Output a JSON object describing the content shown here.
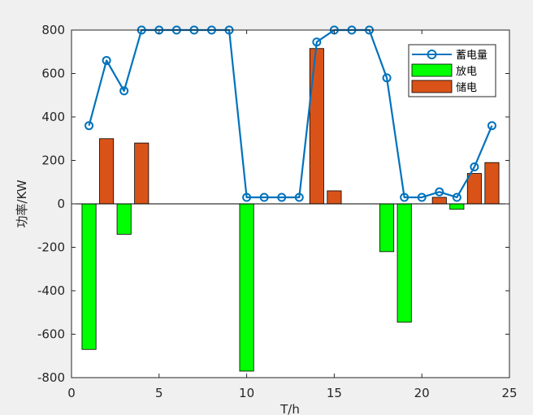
{
  "chart_data": {
    "type": "bar",
    "xlabel": "T/h",
    "ylabel": "功率/KW",
    "xlim": [
      0,
      25
    ],
    "ylim": [
      -800,
      800
    ],
    "xticks": [
      0,
      5,
      10,
      15,
      20,
      25
    ],
    "yticks": [
      -800,
      -600,
      -400,
      -200,
      0,
      200,
      400,
      600,
      800
    ],
    "grid": false,
    "legend_position": "top-right",
    "categories": [
      1,
      2,
      3,
      4,
      5,
      6,
      7,
      8,
      9,
      10,
      11,
      12,
      13,
      14,
      15,
      16,
      17,
      18,
      19,
      20,
      21,
      22,
      23,
      24
    ],
    "series": [
      {
        "name": "蓄电量",
        "kind": "line",
        "marker": "circle",
        "color": "#0072BD",
        "values": [
          360,
          660,
          520,
          800,
          800,
          800,
          800,
          800,
          800,
          30,
          30,
          30,
          30,
          745,
          800,
          800,
          800,
          580,
          30,
          30,
          55,
          30,
          170,
          360
        ]
      },
      {
        "name": "放电",
        "kind": "bar",
        "color": "#00FF00",
        "values": [
          -670,
          0,
          -140,
          0,
          0,
          0,
          0,
          0,
          0,
          -770,
          0,
          0,
          0,
          0,
          0,
          0,
          0,
          -220,
          -545,
          0,
          0,
          -25,
          0,
          0
        ]
      },
      {
        "name": "储电",
        "kind": "bar",
        "color": "#D95319",
        "values": [
          0,
          300,
          0,
          280,
          0,
          0,
          0,
          0,
          0,
          0,
          0,
          0,
          0,
          715,
          60,
          0,
          0,
          0,
          0,
          0,
          30,
          0,
          140,
          190
        ]
      }
    ]
  }
}
